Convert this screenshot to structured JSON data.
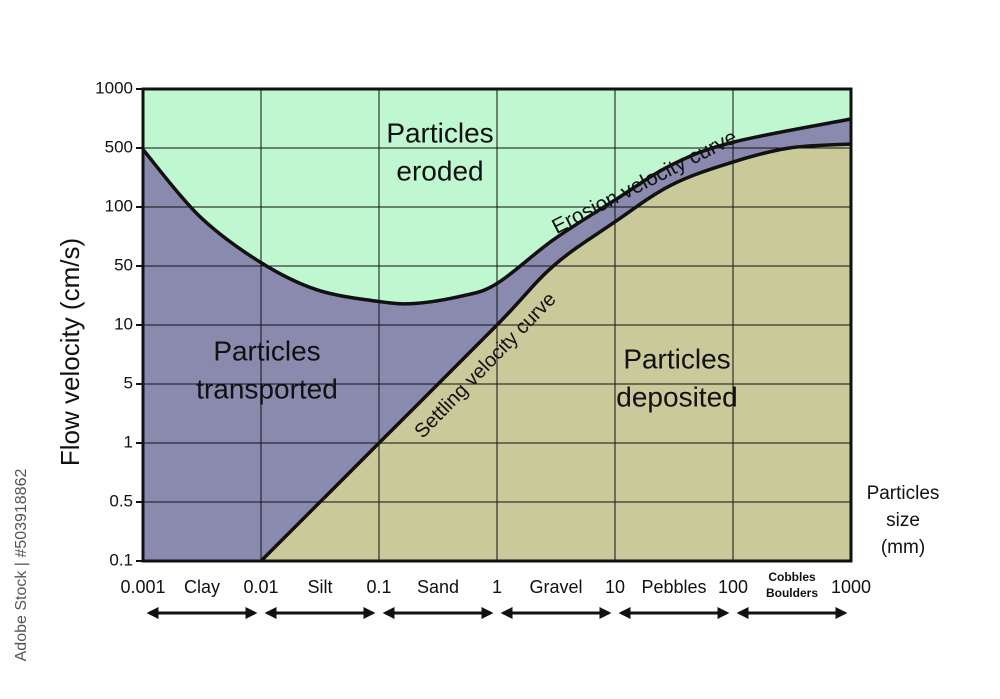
{
  "chart_data": {
    "type": "area",
    "y_label": "Flow velocity (cm/s)",
    "x_label": [
      "Particles",
      "size",
      "(mm)"
    ],
    "x_scale": "log",
    "xlim": [
      0.001,
      1000
    ],
    "xticks": [
      0.001,
      0.01,
      0.1,
      1,
      10,
      100,
      1000
    ],
    "ylim": [
      0.1,
      1000
    ],
    "yticks": [
      0.1,
      0.5,
      1,
      5,
      10,
      50,
      100,
      500,
      1000
    ],
    "grid": true,
    "series": [
      {
        "name": "Erosion velocity curve",
        "x": [
          0.001,
          0.003,
          0.01,
          0.03,
          0.1,
          0.2,
          0.5,
          1,
          3,
          10,
          30,
          100,
          1000
        ],
        "values": [
          480,
          90,
          52,
          26,
          19,
          18,
          22,
          31,
          68,
          121,
          314,
          535,
          703
        ]
      },
      {
        "name": "Settling velocity curve",
        "x": [
          0.01,
          0.1,
          1,
          3,
          10,
          30,
          100,
          300,
          1000
        ],
        "values": [
          0.1,
          1,
          10,
          50,
          84,
          182,
          341,
          500,
          524
        ]
      }
    ],
    "regions": [
      {
        "label": [
          "Particles",
          "eroded"
        ],
        "color": "#bff7d0"
      },
      {
        "label": [
          "Particles",
          "transported"
        ],
        "color": "#8a8aae"
      },
      {
        "label": [
          "Particles",
          "deposited"
        ],
        "color": "#c9c99a"
      }
    ],
    "size_classes": [
      {
        "name": [
          "Clay"
        ],
        "range": [
          0.001,
          0.01
        ]
      },
      {
        "name": [
          "Silt"
        ],
        "range": [
          0.01,
          0.1
        ]
      },
      {
        "name": [
          "Sand"
        ],
        "range": [
          0.1,
          1
        ]
      },
      {
        "name": [
          "Gravel"
        ],
        "range": [
          1,
          10
        ]
      },
      {
        "name": [
          "Pebbles"
        ],
        "range": [
          10,
          100
        ]
      },
      {
        "name": [
          "Cobbles",
          "Boulders"
        ],
        "range": [
          100,
          1000
        ]
      }
    ],
    "watermark": "Adobe Stock | #503918862"
  }
}
